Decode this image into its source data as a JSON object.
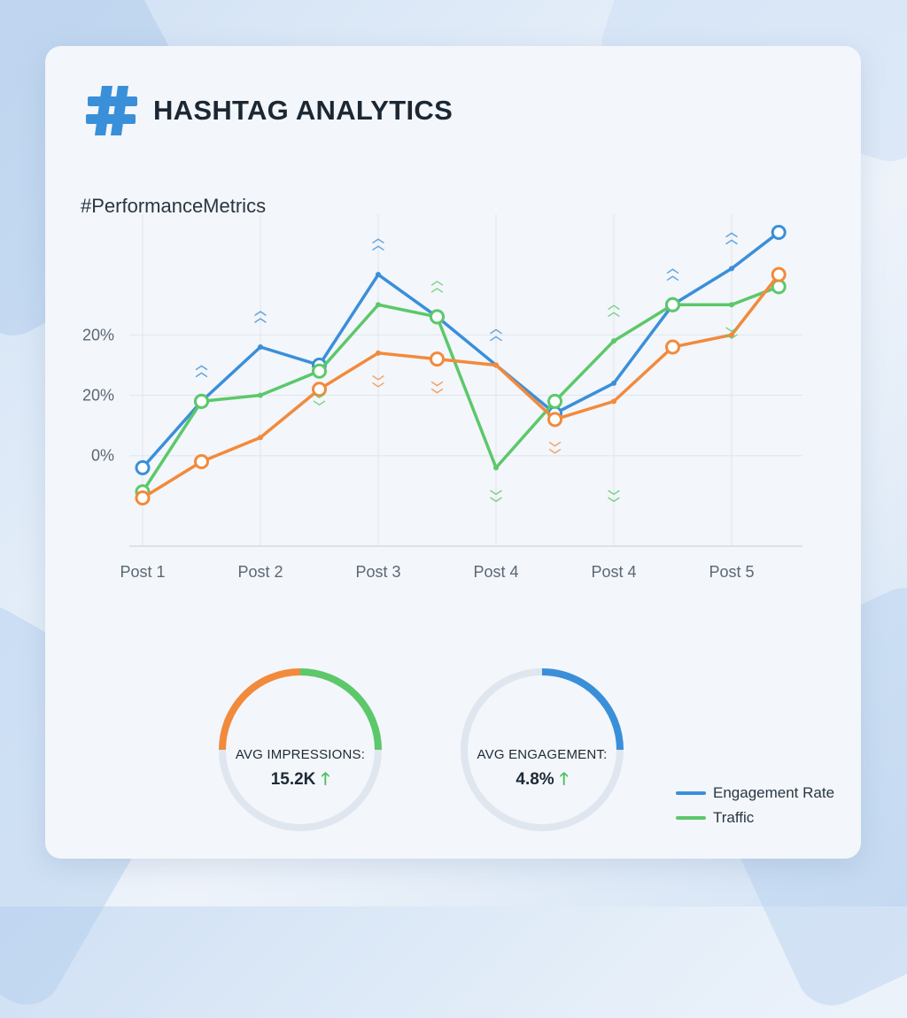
{
  "header": {
    "title": "HASHTAG ANALYTICS",
    "icon": "hashtag-icon",
    "icon_color": "#3a8fd9"
  },
  "chart_data": {
    "type": "line",
    "title": "#PerformanceMetrics",
    "x_tick_labels": [
      "Post 1",
      "Post 2",
      "Post 3",
      "Post 4",
      "Post 4",
      "Post 5"
    ],
    "y_tick_labels": [
      "20%",
      "20%",
      "0%"
    ],
    "grid": true,
    "x": [
      1,
      1.5,
      2,
      2.5,
      3,
      3.5,
      4,
      4.5,
      5,
      5.5,
      6,
      6.4
    ],
    "series": [
      {
        "name": "Engagement Rate",
        "color": "#3a8fd9",
        "values": [
          -2,
          9,
          18,
          15,
          30,
          23,
          15,
          7,
          12,
          25,
          31,
          37
        ]
      },
      {
        "name": "Traffic",
        "color": "#5cc86a",
        "values": [
          -6,
          9,
          10,
          14,
          25,
          23,
          -2,
          9,
          19,
          25,
          25,
          28
        ]
      },
      {
        "color": "#f28a3c",
        "values": [
          -7,
          -1,
          3,
          11,
          17,
          16,
          15,
          6,
          9,
          18,
          20,
          30
        ]
      }
    ]
  },
  "gauges": [
    {
      "label": "AVG IMPRESSIONS:",
      "value": "15.2K"
    },
    {
      "label": "AVG ENGAGEMENT:",
      "value": "4.8%"
    }
  ],
  "legend": [
    {
      "label": "Engagement Rate",
      "color": "#3a8fd9"
    },
    {
      "label": "Traffic",
      "color": "#5cc86a"
    }
  ]
}
